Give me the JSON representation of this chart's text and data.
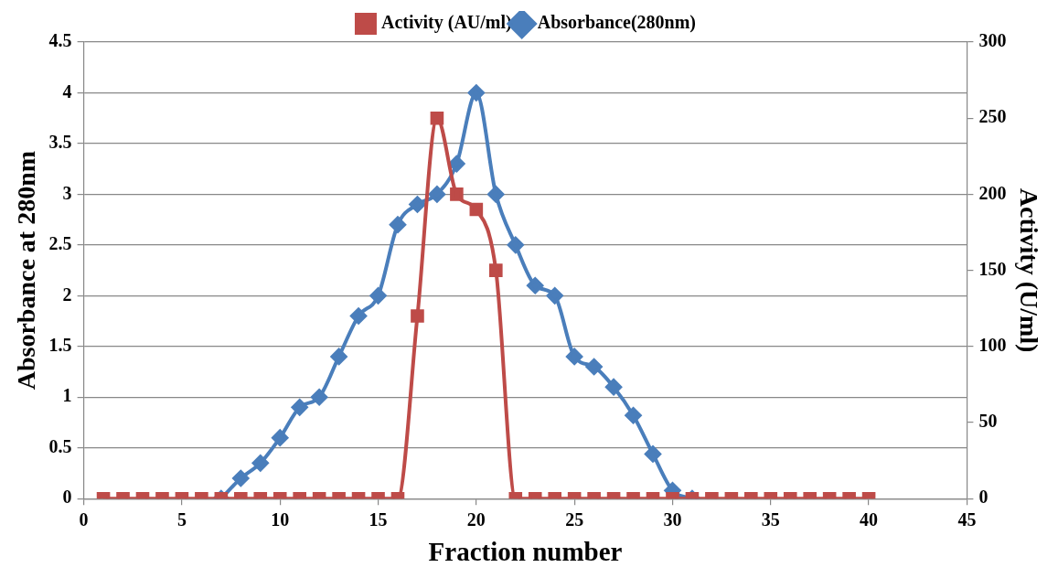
{
  "chart_data": {
    "type": "line",
    "xlabel": "Fraction number",
    "ylabel": "Absorbance at 280nm",
    "y2label": "Activity (U/ml)",
    "x": [
      1,
      2,
      3,
      4,
      5,
      6,
      7,
      8,
      9,
      10,
      11,
      12,
      13,
      14,
      15,
      16,
      17,
      18,
      19,
      20,
      21,
      22,
      23,
      24,
      25,
      26,
      27,
      28,
      29,
      30,
      31,
      32,
      33,
      34,
      35,
      36,
      37,
      38,
      39,
      40
    ],
    "series": [
      {
        "name": "Absorbance(280nm)",
        "color": "#4a7ebb",
        "marker": "diamond",
        "values": [
          null,
          null,
          null,
          null,
          null,
          null,
          0,
          0.2,
          0.35,
          0.6,
          0.9,
          1.0,
          1.4,
          1.8,
          2.0,
          2.7,
          2.9,
          3.0,
          3.3,
          4.0,
          3.0,
          2.5,
          2.1,
          2.0,
          1.4,
          1.3,
          1.1,
          0.82,
          0.44,
          0.08,
          0,
          null,
          null,
          null,
          null,
          null,
          null,
          null,
          null,
          null
        ]
      },
      {
        "name": "Activity (AU/ml)",
        "color": "#be4b48",
        "marker": "square",
        "axis": "y2",
        "values": [
          0,
          0,
          0,
          0,
          0,
          0,
          0,
          0,
          0,
          0,
          0,
          0,
          0,
          0,
          0,
          0,
          120,
          250,
          200,
          190,
          150,
          0,
          0,
          0,
          0,
          0,
          0,
          0,
          0,
          0,
          0,
          0,
          0,
          0,
          0,
          0,
          0,
          0,
          0,
          0
        ]
      }
    ],
    "xlim": [
      0,
      45
    ],
    "xticks": [
      0,
      5,
      10,
      15,
      20,
      25,
      30,
      35,
      40,
      45
    ],
    "ylim": [
      0,
      4.5
    ],
    "yticks": [
      0,
      0.5,
      1,
      1.5,
      2,
      2.5,
      3,
      3.5,
      4,
      4.5
    ],
    "y2lim": [
      0,
      300
    ],
    "y2ticks": [
      0,
      50,
      100,
      150,
      200,
      250,
      300
    ],
    "grid": "y",
    "legend": "top",
    "line_style": "solid"
  }
}
